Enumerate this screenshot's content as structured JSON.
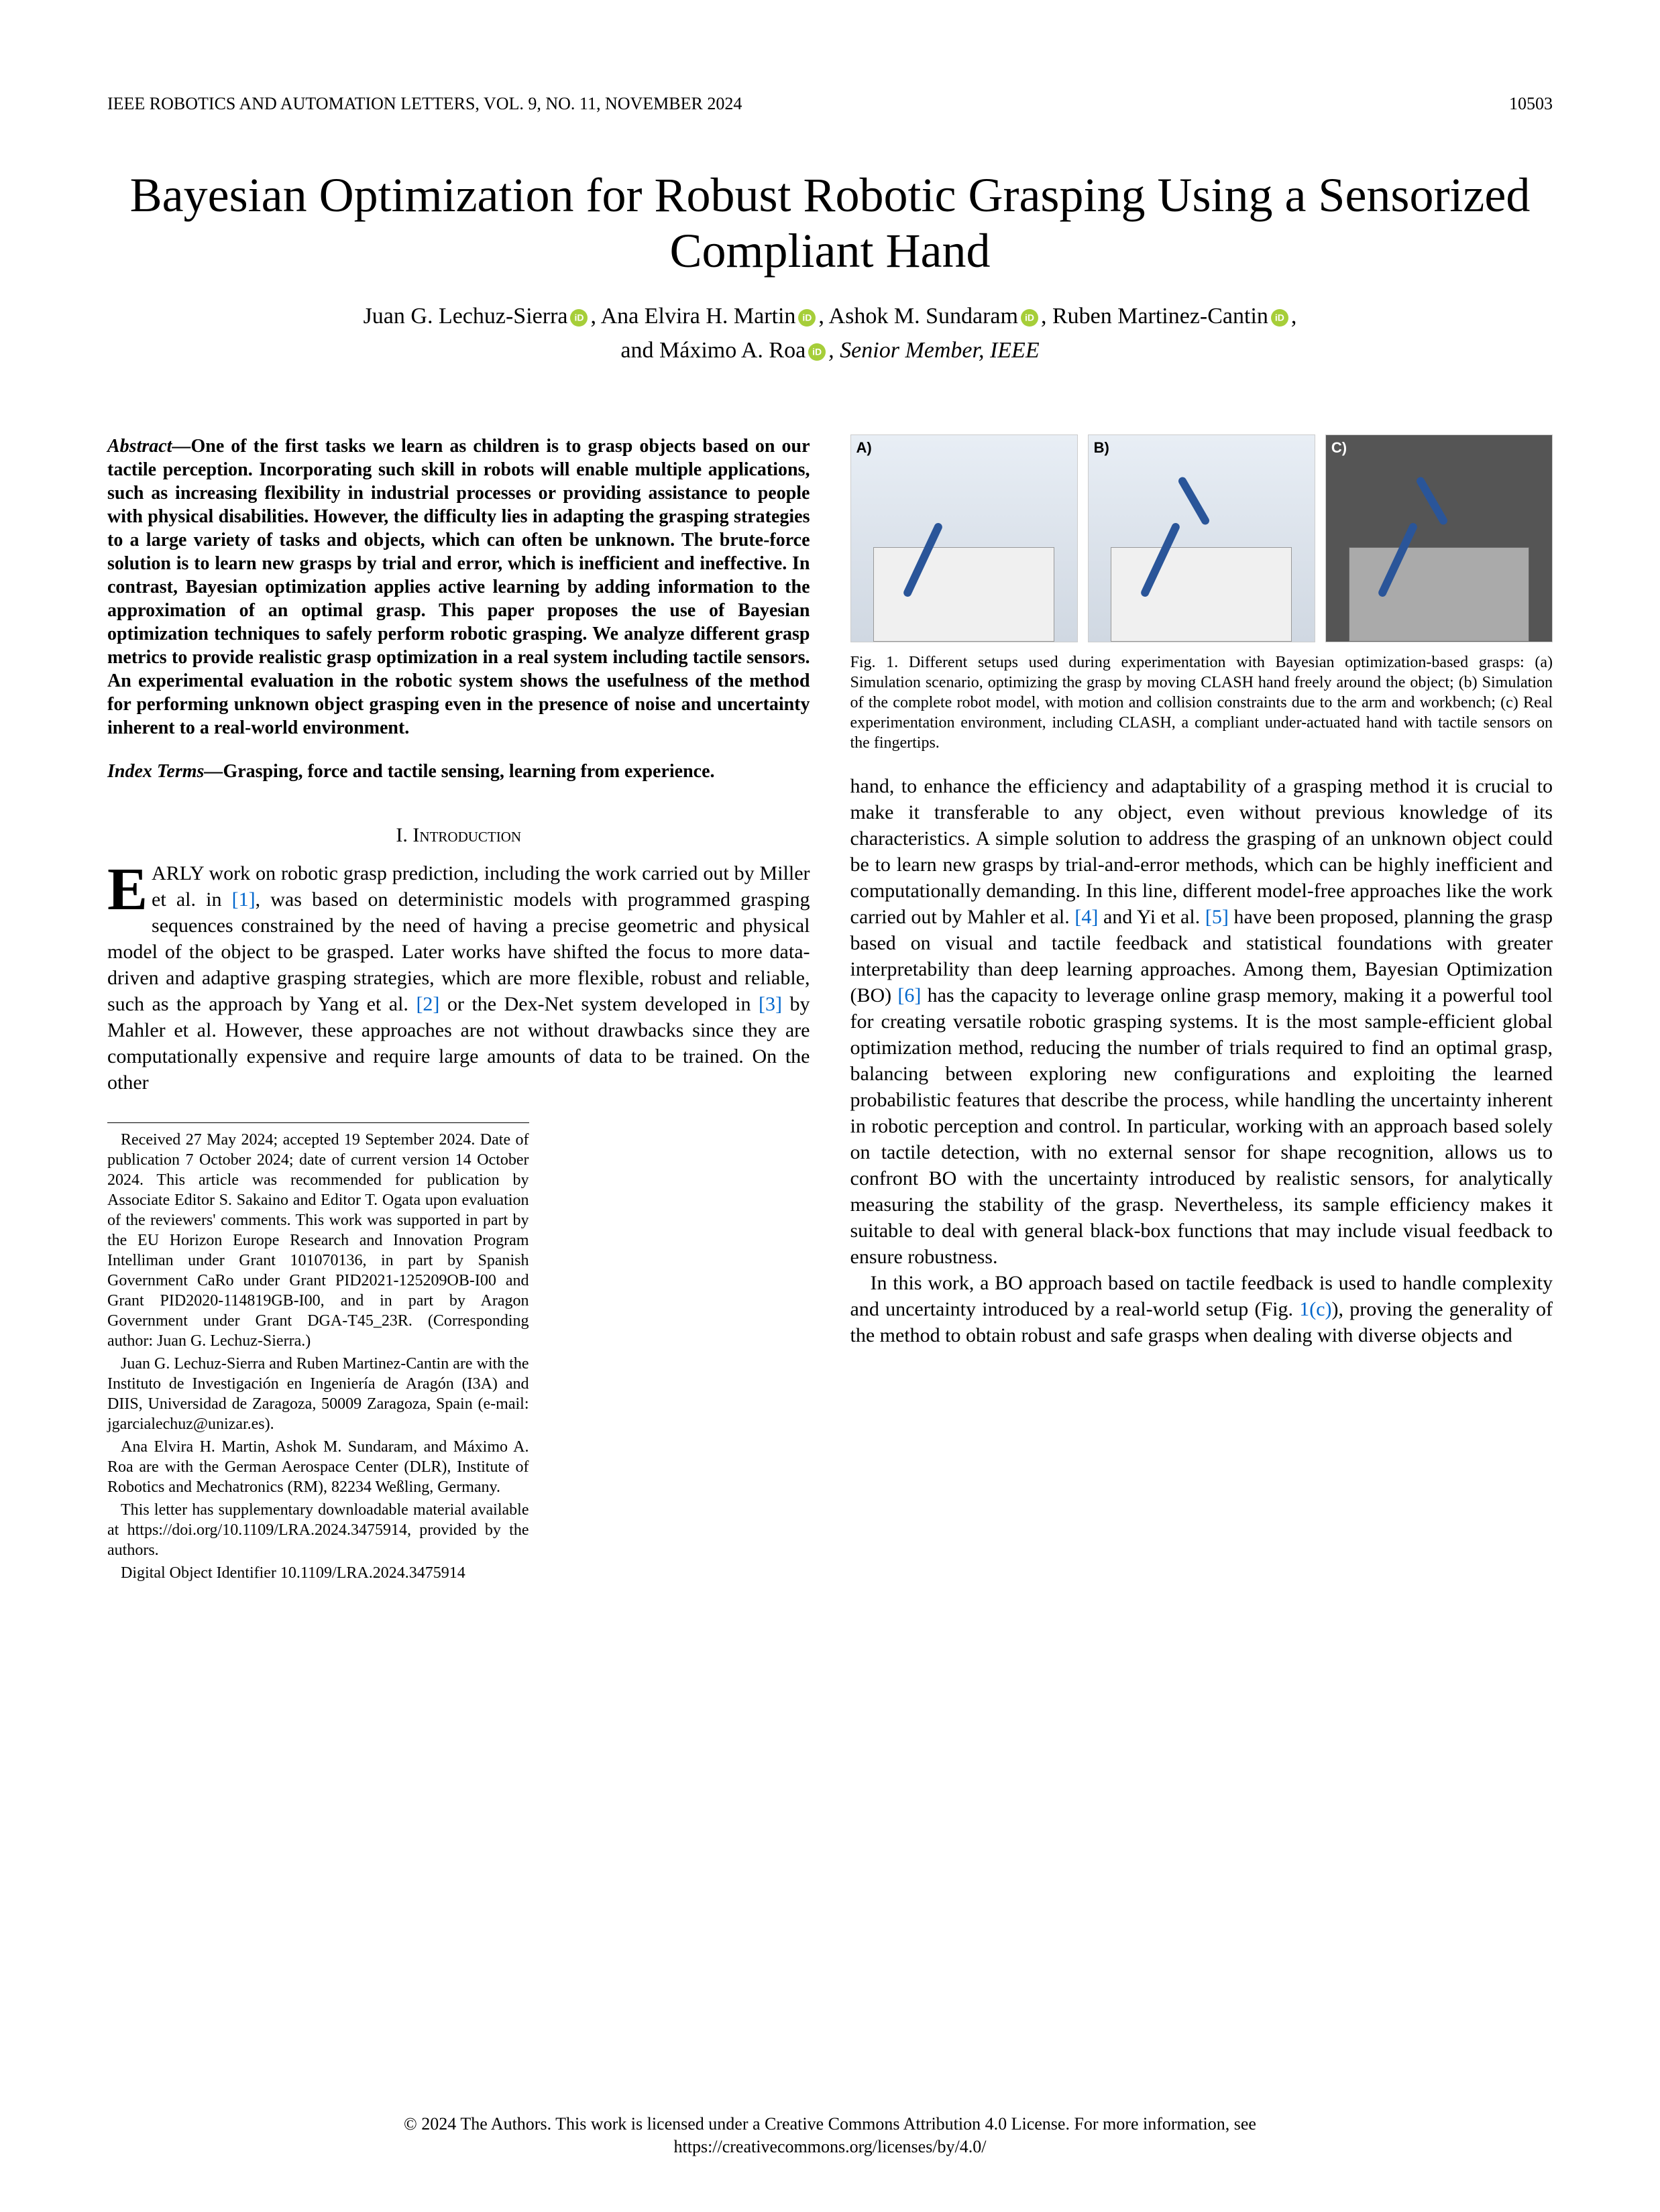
{
  "header": {
    "journal": "IEEE ROBOTICS AND AUTOMATION LETTERS, VOL. 9, NO. 11, NOVEMBER 2024",
    "page_number": "10503"
  },
  "title": "Bayesian Optimization for Robust Robotic Grasping Using a Sensorized Compliant Hand",
  "authors": {
    "a1": "Juan G. Lechuz-Sierra",
    "a2": "Ana Elvira H. Martin",
    "a3": "Ashok M. Sundaram",
    "a4": "Ruben Martinez-Cantin",
    "a5_prefix": "and ",
    "a5": "Máximo A. Roa",
    "member": ", Senior Member, IEEE"
  },
  "abstract": {
    "label": "Abstract—",
    "text": "One of the first tasks we learn as children is to grasp objects based on our tactile perception. Incorporating such skill in robots will enable multiple applications, such as increasing flexibility in industrial processes or providing assistance to people with physical disabilities. However, the difficulty lies in adapting the grasping strategies to a large variety of tasks and objects, which can often be unknown. The brute-force solution is to learn new grasps by trial and error, which is inefficient and ineffective. In contrast, Bayesian optimization applies active learning by adding information to the approximation of an optimal grasp. This paper proposes the use of Bayesian optimization techniques to safely perform robotic grasping. We analyze different grasp metrics to provide realistic grasp optimization in a real system including tactile sensors. An experimental evaluation in the robotic system shows the usefulness of the method for performing unknown object grasping even in the presence of noise and uncertainty inherent to a real-world environment."
  },
  "index_terms": {
    "label": "Index Terms—",
    "text": "Grasping, force and tactile sensing, learning from experience."
  },
  "section1": {
    "number": "I.",
    "title": "Introduction"
  },
  "intro": {
    "first_letter": "E",
    "p1a": "ARLY work on robotic grasp prediction, including the work carried out by Miller et al. in ",
    "r1": "[1]",
    "p1b": ", was based on deterministic models with programmed grasping sequences constrained by the need of having a precise geometric and physical model of the object to be grasped. Later works have shifted the focus to more data-driven and adaptive grasping strategies, which are more flexible, robust and reliable, such as the approach by Yang et al. ",
    "r2": "[2]",
    "p1c": " or the Dex-Net system developed in ",
    "r3": "[3]",
    "p1d": " by Mahler et al. However, these approaches are not without drawbacks since they are computationally expensive and require large amounts of data to be trained. On the other"
  },
  "col2": {
    "p1a": "hand, to enhance the efficiency and adaptability of a grasping method it is crucial to make it transferable to any object, even without previous knowledge of its characteristics. A simple solution to address the grasping of an unknown object could be to learn new grasps by trial-and-error methods, which can be highly inefficient and computationally demanding. In this line, different model-free approaches like the work carried out by Mahler et al. ",
    "r4": "[4]",
    "p1b": " and Yi et al. ",
    "r5": "[5]",
    "p1c": " have been proposed, planning the grasp based on visual and tactile feedback and statistical foundations with greater interpretability than deep learning approaches. Among them, Bayesian Optimization (BO) ",
    "r6": "[6]",
    "p1d": " has the capacity to leverage online grasp memory, making it a powerful tool for creating versatile robotic grasping systems. It is the most sample-efficient global optimization method, reducing the number of trials required to find an optimal grasp, balancing between exploring new configurations and exploiting the learned probabilistic features that describe the process, while handling the uncertainty inherent in robotic perception and control. In particular, working with an approach based solely on tactile detection, with no external sensor for shape recognition, allows us to confront BO with the uncertainty introduced by realistic sensors, for analytically measuring the stability of the grasp. Nevertheless, its sample efficiency makes it suitable to deal with general black-box functions that may include visual feedback to ensure robustness.",
    "p2a": "In this work, a BO approach based on tactile feedback is used to handle complexity and uncertainty introduced by a real-world setup (Fig. ",
    "figref": "1(c)",
    "p2b": "), proving the generality of the method to obtain robust and safe grasps when dealing with diverse objects and"
  },
  "figure1": {
    "panelA": "A)",
    "panelB": "B)",
    "panelC": "C)",
    "caption": "Fig. 1.    Different setups used during experimentation with Bayesian optimization-based grasps: (a) Simulation scenario, optimizing the grasp by moving CLASH hand freely around the object; (b) Simulation of the complete robot model, with motion and collision constraints due to the arm and workbench; (c) Real experimentation environment, including CLASH, a compliant under-actuated hand with tactile sensors on the fingertips."
  },
  "footnotes": {
    "f1": "Received 27 May 2024; accepted 19 September 2024. Date of publication 7 October 2024; date of current version 14 October 2024. This article was recommended for publication by Associate Editor S. Sakaino and Editor T. Ogata upon evaluation of the reviewers' comments. This work was supported in part by the EU Horizon Europe Research and Innovation Program Intelliman under Grant 101070136, in part by Spanish Government CaRo under Grant PID2021-125209OB-I00 and Grant PID2020-114819GB-I00, and in part by Aragon Government under Grant DGA-T45_23R. (Corresponding author: Juan G. Lechuz-Sierra.)",
    "f2": "Juan G. Lechuz-Sierra and Ruben Martinez-Cantin are with the Instituto de Investigación en Ingeniería de Aragón (I3A) and DIIS, Universidad de Zaragoza, 50009 Zaragoza, Spain (e-mail: jgarcialechuz@unizar.es).",
    "f3": "Ana Elvira H. Martin, Ashok M. Sundaram, and Máximo A. Roa are with the German Aerospace Center (DLR), Institute of Robotics and Mechatronics (RM), 82234 Weßling, Germany.",
    "f4": "This letter has supplementary downloadable material available at https://doi.org/10.1109/LRA.2024.3475914, provided by the authors.",
    "f5": "Digital Object Identifier 10.1109/LRA.2024.3475914"
  },
  "license": {
    "line1": "© 2024 The Authors. This work is licensed under a Creative Commons Attribution 4.0 License. For more information, see",
    "line2": "https://creativecommons.org/licenses/by/4.0/"
  }
}
